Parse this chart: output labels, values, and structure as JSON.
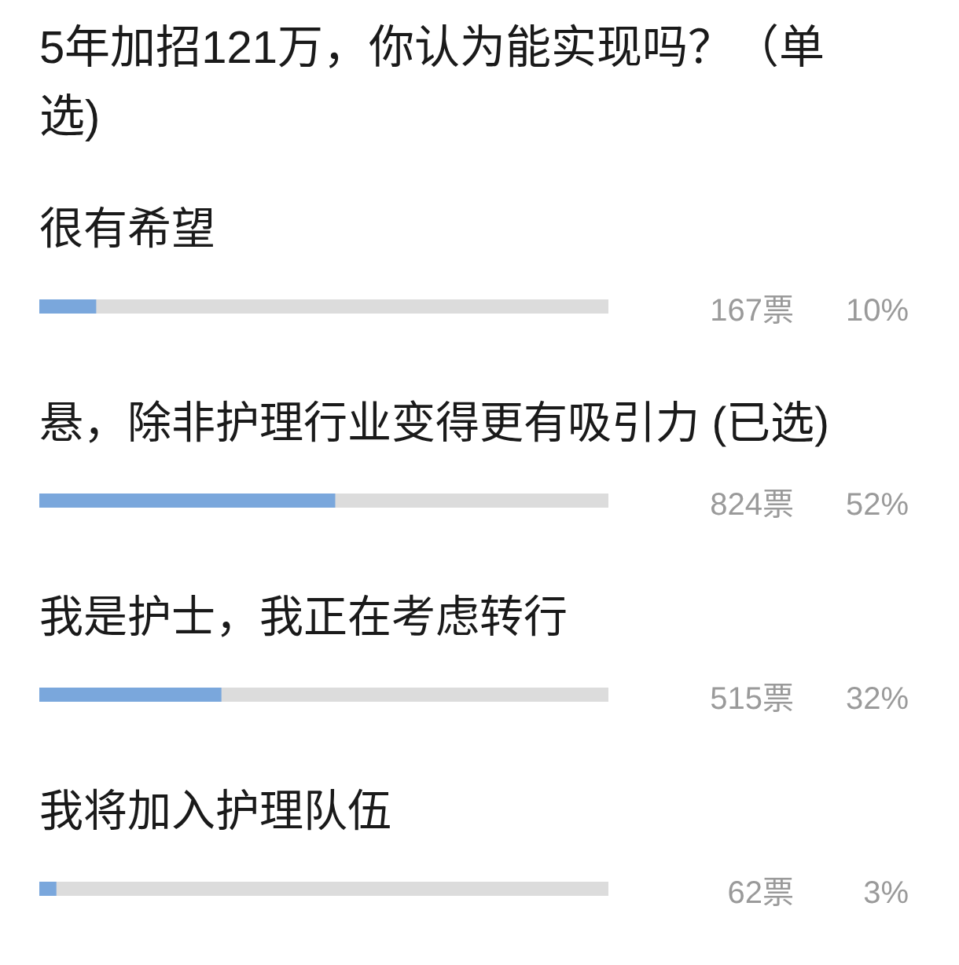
{
  "chart_data": {
    "type": "bar",
    "orientation": "horizontal",
    "title": "5年加招121万，你认为能实现吗？（单选)",
    "categories": [
      "很有希望",
      "悬，除非护理行业变得更有吸引力 (已选)",
      "我是护士，我正在考虑转行",
      "我将加入护理队伍"
    ],
    "values": [
      10,
      52,
      32,
      3
    ],
    "value_labels": [
      "10%",
      "52%",
      "32%",
      "3%"
    ],
    "color": "#7aa7dc",
    "xlim": [
      0,
      100
    ],
    "tick_labels": "y",
    "annotations": [
      "167票",
      "824票",
      "515票",
      "62票"
    ]
  }
}
